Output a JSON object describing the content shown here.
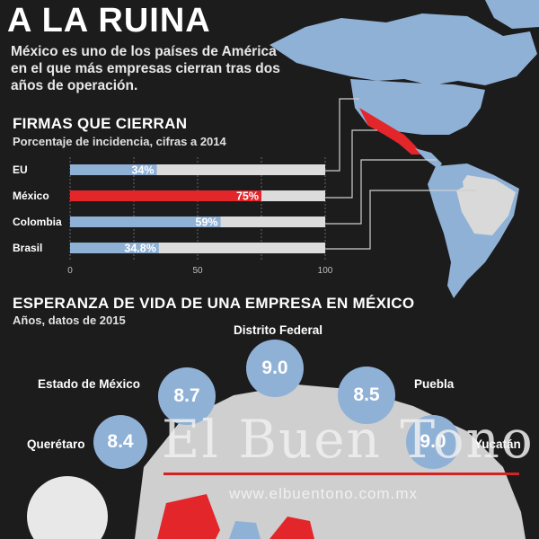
{
  "header": {
    "title": "A LA RUINA",
    "intro": "México es uno de los países de América en el que más empresas cierran tras dos años de operación."
  },
  "colors": {
    "background": "#1c1c1c",
    "highlight_red": "#e3262a",
    "blue": "#8fb1d6",
    "bar_track": "#dcdcdc"
  },
  "chart_data": [
    {
      "type": "bar",
      "orientation": "horizontal",
      "title": "FIRMAS QUE CIERRAN",
      "subtitle": "Porcentaje de incidencia, cifras a 2014",
      "categories": [
        "EU",
        "México",
        "Colombia",
        "Brasil"
      ],
      "values": [
        34,
        75,
        59,
        34.8
      ],
      "value_labels": [
        "34%",
        "75%",
        "59%",
        "34.8%"
      ],
      "highlight": "México",
      "xlim": [
        0,
        100
      ],
      "xticks": [
        "0",
        "50",
        "100"
      ],
      "grid": true
    },
    {
      "type": "bubble",
      "title": "ESPERANZA DE VIDA DE UNA EMPRESA EN MÉXICO",
      "subtitle": "Años, datos de 2015",
      "categories": [
        "Querétaro",
        "Estado de México",
        "Distrito Federal",
        "Puebla",
        "Yucatán"
      ],
      "values": [
        8.4,
        8.7,
        9.0,
        8.5,
        9.0
      ],
      "value_labels": [
        "8.4",
        "8.7",
        "9.0",
        "8.5",
        "9.0"
      ]
    }
  ],
  "watermark": {
    "brand": "El Buen Tono",
    "url": "www.elbuentono.com.mx"
  }
}
